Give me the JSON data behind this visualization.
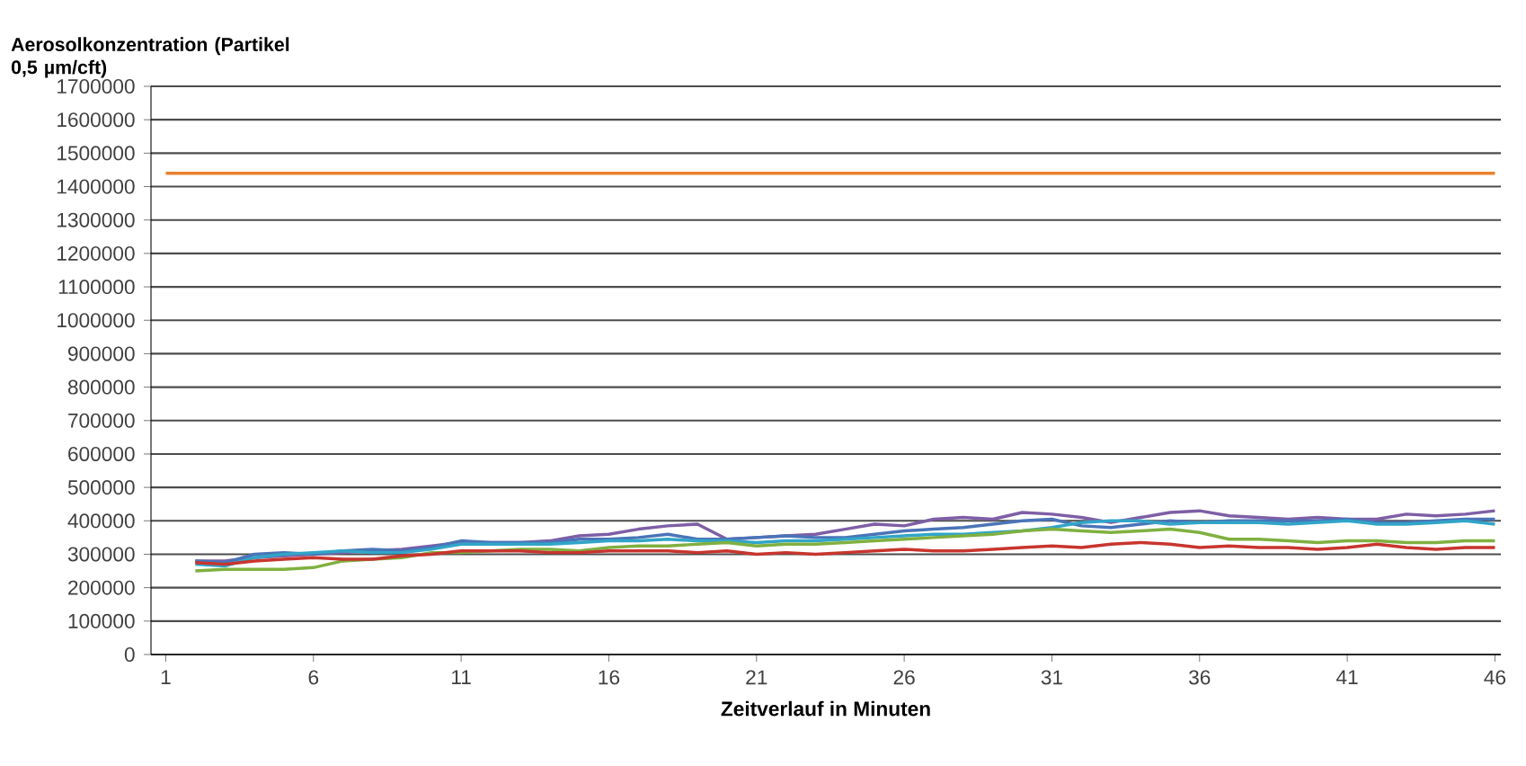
{
  "chart_data": {
    "type": "line",
    "ylabel": "Aerosolkonzentration (Partikel 0,5 µm/cft)",
    "xlabel": "Zeitverlauf in Minuten",
    "xlim": [
      0.5,
      46.2
    ],
    "xticks": [
      1,
      6,
      11,
      16,
      21,
      26,
      31,
      36,
      41,
      46
    ],
    "ylim": [
      0,
      1700000
    ],
    "yticks": [
      0,
      100000,
      200000,
      300000,
      400000,
      500000,
      600000,
      700000,
      800000,
      900000,
      1000000,
      1100000,
      1200000,
      1300000,
      1400000,
      1500000,
      1600000,
      1700000
    ],
    "grid": "y",
    "marker": "none",
    "line_style": "solid",
    "x": [
      2,
      3,
      4,
      5,
      6,
      7,
      8,
      9,
      10,
      11,
      12,
      13,
      14,
      15,
      16,
      17,
      18,
      19,
      20,
      21,
      22,
      23,
      24,
      25,
      26,
      27,
      28,
      29,
      30,
      31,
      32,
      33,
      34,
      35,
      36,
      37,
      38,
      39,
      40,
      41,
      42,
      43,
      44,
      45,
      46
    ],
    "series": [
      {
        "color": "#e8822e",
        "x": [
          1,
          46
        ],
        "values": [
          1440000,
          1440000
        ]
      },
      {
        "color": "#7e5ea6",
        "values": [
          280000,
          280000,
          290000,
          295000,
          300000,
          305000,
          310000,
          315000,
          325000,
          335000,
          335000,
          335000,
          340000,
          355000,
          360000,
          375000,
          385000,
          390000,
          345000,
          350000,
          355000,
          360000,
          375000,
          390000,
          385000,
          405000,
          410000,
          405000,
          425000,
          420000,
          410000,
          395000,
          410000,
          425000,
          430000,
          415000,
          410000,
          405000,
          410000,
          405000,
          405000,
          420000,
          415000,
          420000,
          430000
        ]
      },
      {
        "color": "#4a74b8",
        "values": [
          280000,
          275000,
          300000,
          305000,
          300000,
          310000,
          315000,
          310000,
          320000,
          340000,
          335000,
          335000,
          335000,
          345000,
          345000,
          350000,
          360000,
          345000,
          345000,
          350000,
          355000,
          350000,
          350000,
          360000,
          370000,
          375000,
          380000,
          390000,
          400000,
          405000,
          385000,
          380000,
          390000,
          400000,
          395000,
          400000,
          400000,
          400000,
          400000,
          405000,
          395000,
          395000,
          400000,
          405000,
          405000
        ]
      },
      {
        "color": "#31a5c8",
        "values": [
          270000,
          265000,
          290000,
          300000,
          305000,
          310000,
          305000,
          305000,
          315000,
          330000,
          330000,
          330000,
          330000,
          335000,
          340000,
          340000,
          345000,
          340000,
          340000,
          335000,
          340000,
          340000,
          345000,
          350000,
          355000,
          360000,
          360000,
          365000,
          370000,
          380000,
          395000,
          400000,
          400000,
          390000,
          395000,
          395000,
          395000,
          390000,
          395000,
          400000,
          390000,
          390000,
          395000,
          400000,
          390000
        ]
      },
      {
        "color": "#80b040",
        "values": [
          250000,
          255000,
          255000,
          255000,
          260000,
          280000,
          285000,
          290000,
          305000,
          305000,
          310000,
          315000,
          315000,
          310000,
          320000,
          325000,
          325000,
          330000,
          335000,
          325000,
          330000,
          330000,
          335000,
          340000,
          345000,
          350000,
          355000,
          360000,
          370000,
          375000,
          370000,
          365000,
          370000,
          375000,
          365000,
          345000,
          345000,
          340000,
          335000,
          340000,
          340000,
          335000,
          335000,
          340000,
          340000
        ]
      },
      {
        "color": "#c8352e",
        "values": [
          275000,
          270000,
          280000,
          285000,
          290000,
          285000,
          285000,
          295000,
          300000,
          310000,
          310000,
          310000,
          305000,
          305000,
          310000,
          310000,
          310000,
          305000,
          310000,
          300000,
          305000,
          300000,
          305000,
          310000,
          315000,
          310000,
          310000,
          315000,
          320000,
          325000,
          320000,
          330000,
          335000,
          330000,
          320000,
          325000,
          320000,
          320000,
          315000,
          320000,
          330000,
          320000,
          315000,
          320000,
          320000
        ]
      }
    ]
  }
}
